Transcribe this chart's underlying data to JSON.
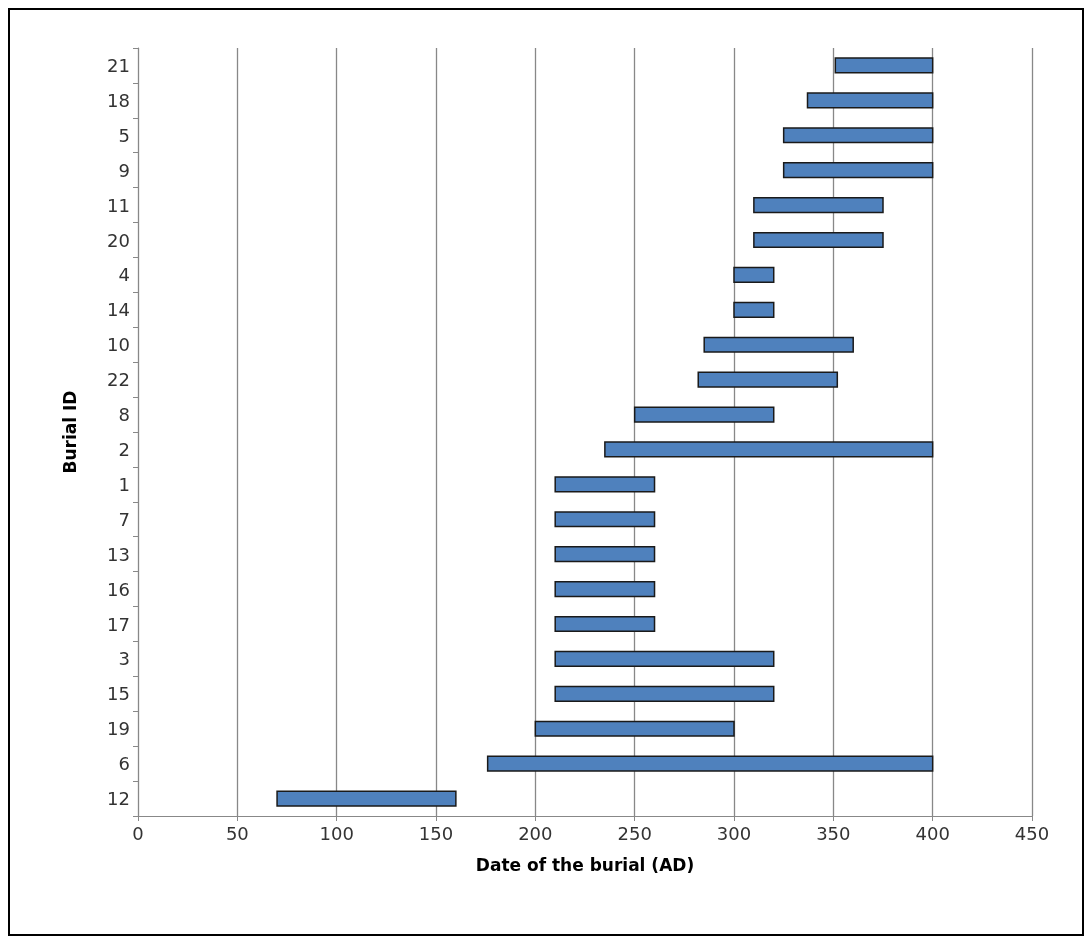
{
  "chart_data": {
    "type": "bar",
    "orientation": "horizontal",
    "xlabel": "Date of the burial (AD)",
    "ylabel": "Burial ID",
    "categories": [
      "21",
      "18",
      "5",
      "9",
      "11",
      "20",
      "4",
      "14",
      "10",
      "22",
      "8",
      "2",
      "1",
      "7",
      "13",
      "16",
      "17",
      "3",
      "15",
      "19",
      "6",
      "12"
    ],
    "base": [
      351,
      337,
      325,
      325,
      310,
      310,
      300,
      300,
      285,
      282,
      250,
      235,
      210,
      210,
      210,
      210,
      210,
      210,
      210,
      200,
      176,
      70
    ],
    "values": [
      49,
      63,
      75,
      75,
      65,
      65,
      20,
      20,
      75,
      70,
      70,
      165,
      50,
      50,
      50,
      50,
      50,
      110,
      110,
      100,
      224,
      90
    ],
    "color": "#4f81bd",
    "xlim": [
      0,
      450
    ],
    "xticks": [
      0,
      50,
      100,
      150,
      200,
      250,
      300,
      350,
      400,
      450
    ],
    "grid": "x"
  }
}
